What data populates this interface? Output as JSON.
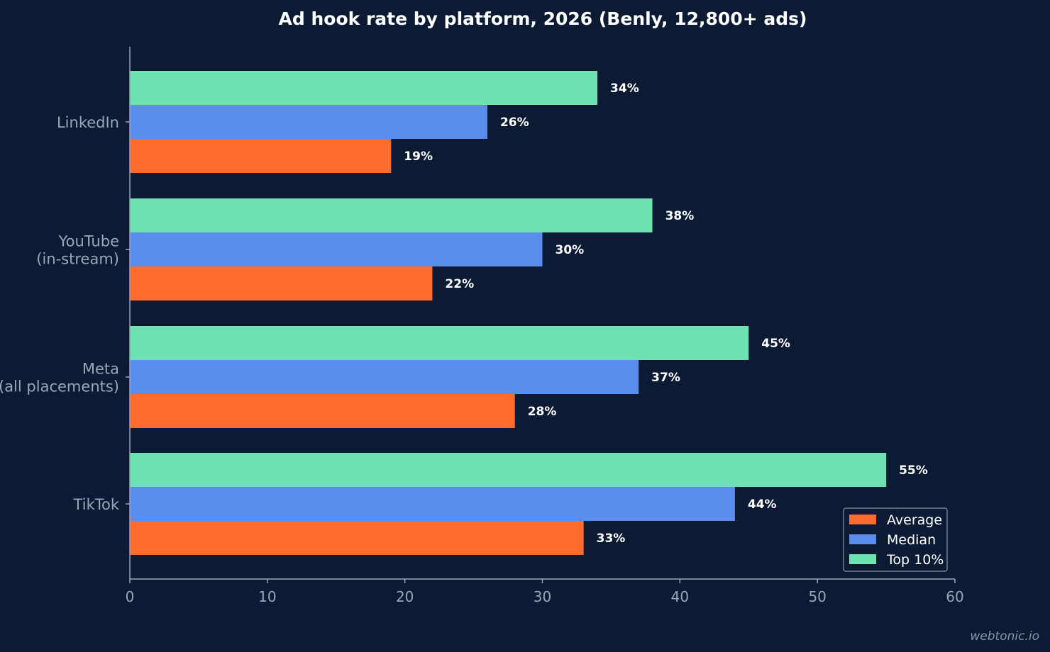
{
  "chart_data": {
    "type": "bar",
    "orientation": "horizontal",
    "title": "Ad hook rate by platform, 2026 (Benly, 12,800+ ads)",
    "xlabel": "",
    "ylabel": "",
    "xlim": [
      0,
      60
    ],
    "xticks": [
      0,
      10,
      20,
      30,
      40,
      50,
      60
    ],
    "grid": false,
    "legend_position": "bottom-right",
    "categories": [
      [
        "LinkedIn"
      ],
      [
        "YouTube",
        "(in-stream)"
      ],
      [
        "Meta",
        "(all placements)"
      ],
      [
        "TikTok"
      ]
    ],
    "series": [
      {
        "name": "Average",
        "color": "#ff6b2c",
        "values": [
          19,
          22,
          28,
          33
        ],
        "labels": [
          "19%",
          "22%",
          "28%",
          "33%"
        ]
      },
      {
        "name": "Median",
        "color": "#5b8def",
        "values": [
          26,
          30,
          37,
          44
        ],
        "labels": [
          "26%",
          "30%",
          "37%",
          "44%"
        ]
      },
      {
        "name": "Top 10%",
        "color": "#6ee2b1",
        "values": [
          34,
          38,
          45,
          55
        ],
        "labels": [
          "34%",
          "38%",
          "45%",
          "55%"
        ]
      }
    ]
  },
  "watermark": "webtonic.io"
}
